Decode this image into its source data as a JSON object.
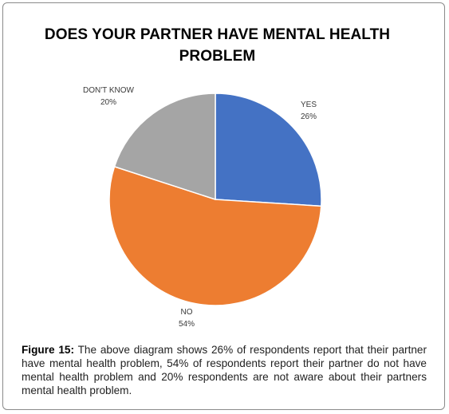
{
  "chart_data": {
    "type": "pie",
    "title": "DOES YOUR PARTNER HAVE MENTAL HEALTH PROBLEM",
    "slices": [
      {
        "label": "YES",
        "value": 26,
        "value_label": "26%",
        "color": "#4472c4"
      },
      {
        "label": "NO",
        "value": 54,
        "value_label": "54%",
        "color": "#ed7d31"
      },
      {
        "label": "DON'T KNOW",
        "value": 20,
        "value_label": "20%",
        "color": "#a5a5a5"
      }
    ]
  },
  "caption": {
    "label": "Figure 15:",
    "text": "The above diagram shows 26% of respondents report that their partner have mental health problem, 54% of respondents report their partner do not have mental health problem and 20% respondents are not aware about their partners mental health problem."
  }
}
